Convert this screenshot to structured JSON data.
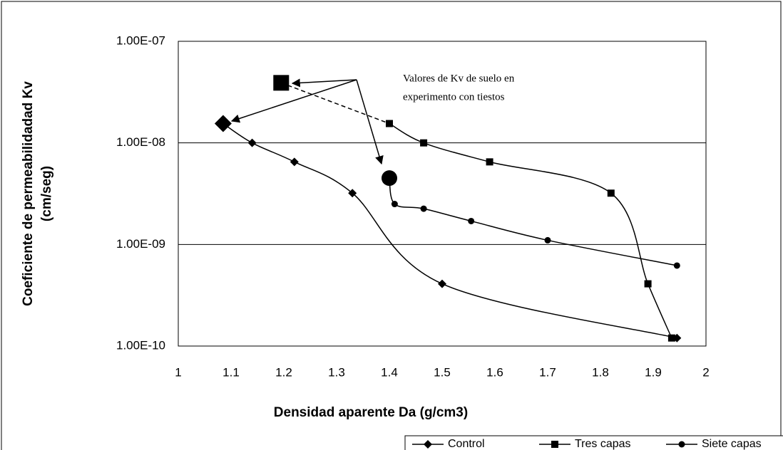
{
  "chart_data": {
    "type": "line",
    "x_label": "Densidad aparente Da (g/cm3)",
    "y_label": [
      "Coeficiente de permeabilidadad Kv",
      "(cm/seg)"
    ],
    "annotation": [
      "Valores de Kv de suelo en",
      "experimento con tiestos"
    ],
    "log_y": true,
    "grid": true,
    "legend": "bottom-right",
    "xlim": [
      1,
      2
    ],
    "xticks": [
      1,
      1.1,
      1.2,
      1.3,
      1.4,
      1.5,
      1.6,
      1.7,
      1.8,
      1.9,
      2
    ],
    "ylim": [
      1e-10,
      1e-07
    ],
    "yticks": [
      {
        "value": 1e-10,
        "label": "1.00E-10"
      },
      {
        "value": 1e-09,
        "label": "1.00E-09"
      },
      {
        "value": 1e-08,
        "label": "1.00E-08"
      },
      {
        "value": 1e-07,
        "label": "1.00E-07"
      }
    ],
    "series": [
      {
        "name": "Control",
        "color": "#000000",
        "marker": "diamond",
        "large_first_marker": true,
        "x": [
          1.085,
          1.14,
          1.22,
          1.33,
          1.5,
          1.945
        ],
        "values": [
          1.55e-08,
          1e-08,
          6.5e-09,
          3.2e-09,
          4.1e-10,
          1.2e-10
        ]
      },
      {
        "name": "Tres capas",
        "color": "#000000",
        "marker": "square",
        "large_first_marker": true,
        "first_segment_dashed": true,
        "x": [
          1.195,
          1.4,
          1.465,
          1.59,
          1.82,
          1.89,
          1.935
        ],
        "values": [
          3.9e-08,
          1.55e-08,
          1e-08,
          6.5e-09,
          3.2e-09,
          4.1e-10,
          1.2e-10
        ]
      },
      {
        "name": "Siete capas",
        "color": "#000000",
        "marker": "circle",
        "large_first_marker": true,
        "x": [
          1.4,
          1.41,
          1.465,
          1.555,
          1.7,
          1.945
        ],
        "values": [
          4.5e-09,
          2.5e-09,
          2.25e-09,
          1.7e-09,
          1.1e-09,
          6.2e-10
        ]
      }
    ]
  }
}
